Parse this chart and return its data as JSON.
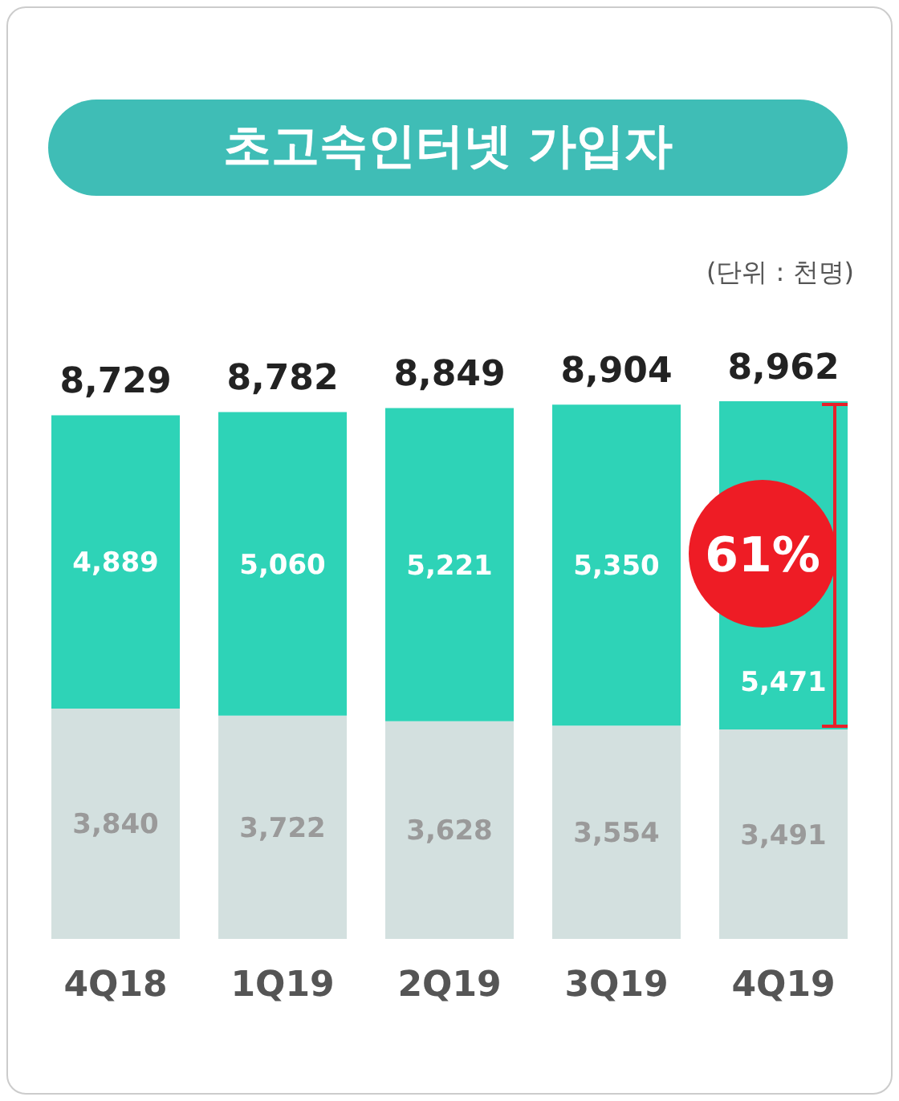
{
  "chart_data": {
    "type": "bar",
    "title": "초고속인터넷 가입자",
    "stacked": true,
    "categories": [
      "4Q18",
      "1Q19",
      "2Q19",
      "3Q19",
      "4Q19"
    ],
    "series": [
      {
        "color": "#d3e0df",
        "values": [
          3840,
          3722,
          3628,
          3554,
          3491
        ],
        "value_labels": [
          "3,840",
          "3,722",
          "3,628",
          "3,554",
          "3,491"
        ]
      },
      {
        "color": "#2ed3b7",
        "values": [
          4889,
          5060,
          5221,
          5350,
          5471
        ],
        "value_labels": [
          "4,889",
          "5,060",
          "5,221",
          "5,350",
          "5,471"
        ]
      }
    ],
    "totals": [
      "8,729",
      "8,782",
      "8,849",
      "8,904",
      "8,962"
    ],
    "annotations": [
      "(단위 : 천명)",
      "61%"
    ]
  }
}
